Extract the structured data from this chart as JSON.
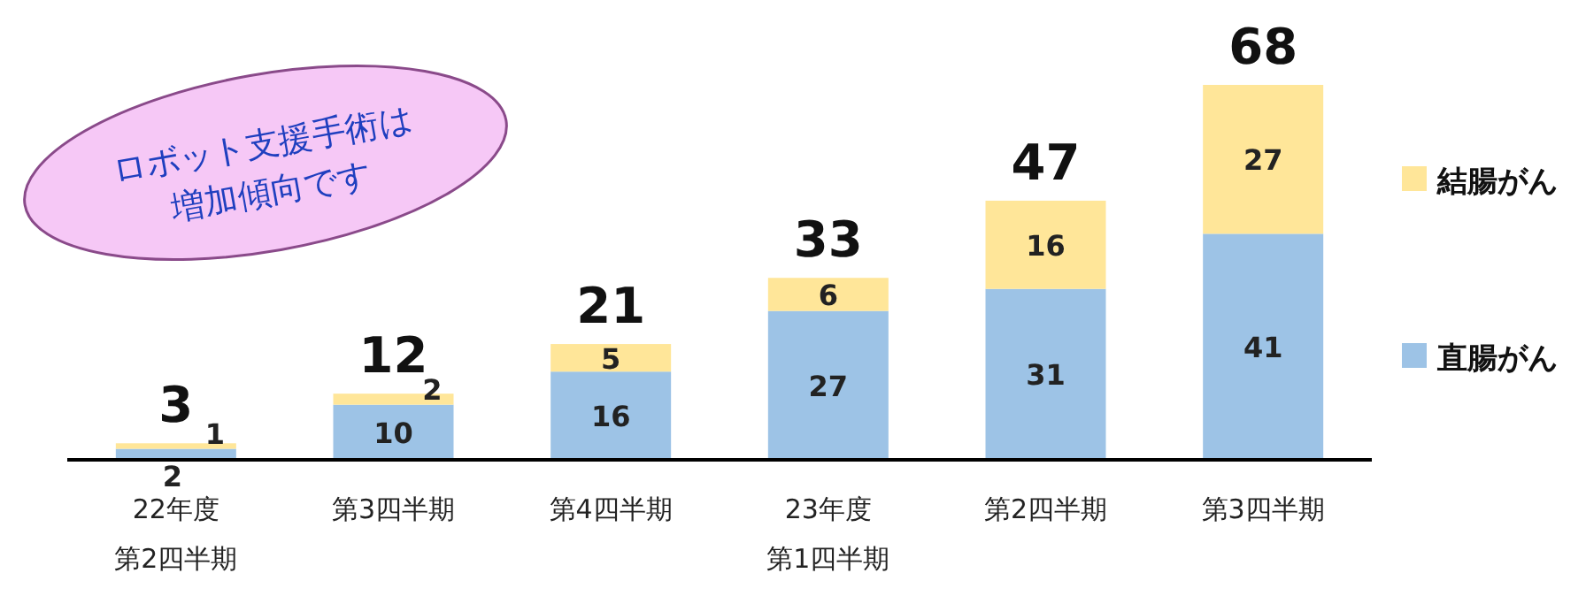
{
  "chart_data": {
    "type": "bar",
    "stacked": true,
    "data_labels": true,
    "legend": "right",
    "categories": [
      "22年度第2四半期",
      "第3四半期",
      "第4四半期",
      "23年度第1四半期",
      "第2四半期",
      "第3四半期"
    ],
    "series": [
      {
        "name": "直腸がん",
        "color": "#9dc3e6",
        "values": [
          2,
          10,
          16,
          27,
          31,
          41
        ]
      },
      {
        "name": "結腸がん",
        "color": "#ffe699",
        "values": [
          1,
          2,
          5,
          6,
          16,
          27
        ]
      }
    ],
    "totals": [
      "3",
      "12",
      "21",
      "33",
      "47",
      "68"
    ],
    "annotations": [
      "ロボット支援手術は\n増加傾向です"
    ]
  }
}
